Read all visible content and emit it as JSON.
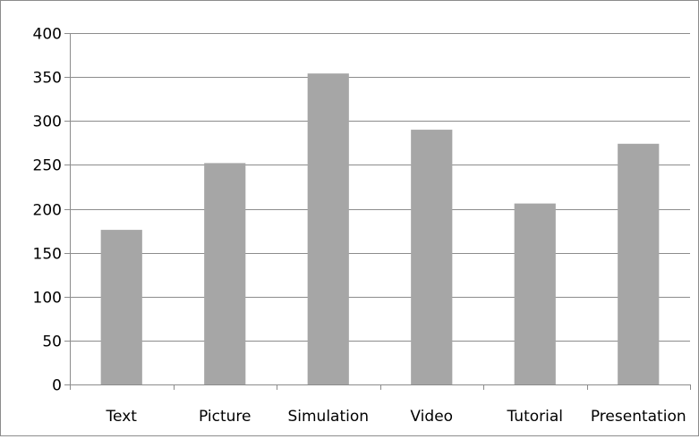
{
  "chart_data": {
    "type": "bar",
    "categories": [
      "Text",
      "Picture",
      "Simulation",
      "Video",
      "Tutorial",
      "Presentation"
    ],
    "values": [
      176,
      252,
      354,
      290,
      206,
      274
    ],
    "ylim": [
      0,
      400
    ],
    "yticks": [
      0,
      50,
      100,
      150,
      200,
      250,
      300,
      350,
      400
    ],
    "grid": true,
    "legend": "none",
    "colors": {
      "bar": "#a6a6a6",
      "gridline": "#8c8c8c",
      "axis": "#8c8c8c",
      "text": "#000000"
    }
  }
}
